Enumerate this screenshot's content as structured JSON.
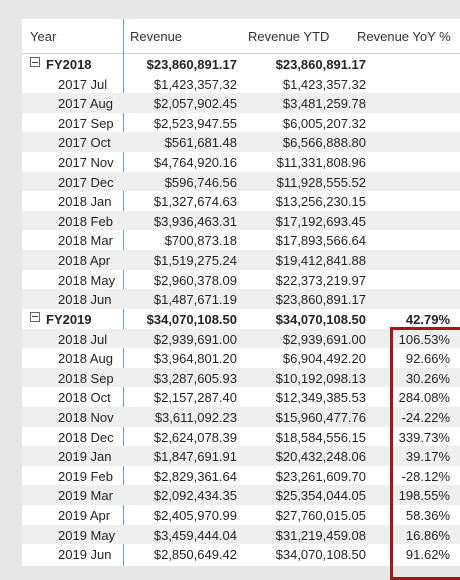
{
  "headers": {
    "year": "Year",
    "revenue": "Revenue",
    "revenue_ytd": "Revenue YTD",
    "revenue_yoy": "Revenue YoY %"
  },
  "rows": [
    {
      "year": "FY2018",
      "revenue": "$23,860,891.17",
      "ytd": "$23,860,891.17",
      "yoy": "",
      "total": true
    },
    {
      "year": "2017 Jul",
      "revenue": "$1,423,357.32",
      "ytd": "$1,423,357.32",
      "yoy": ""
    },
    {
      "year": "2017 Aug",
      "revenue": "$2,057,902.45",
      "ytd": "$3,481,259.78",
      "yoy": ""
    },
    {
      "year": "2017 Sep",
      "revenue": "$2,523,947.55",
      "ytd": "$6,005,207.32",
      "yoy": ""
    },
    {
      "year": "2017 Oct",
      "revenue": "$561,681.48",
      "ytd": "$6,566,888.80",
      "yoy": ""
    },
    {
      "year": "2017 Nov",
      "revenue": "$4,764,920.16",
      "ytd": "$11,331,808.96",
      "yoy": ""
    },
    {
      "year": "2017 Dec",
      "revenue": "$596,746.56",
      "ytd": "$11,928,555.52",
      "yoy": ""
    },
    {
      "year": "2018 Jan",
      "revenue": "$1,327,674.63",
      "ytd": "$13,256,230.15",
      "yoy": ""
    },
    {
      "year": "2018 Feb",
      "revenue": "$3,936,463.31",
      "ytd": "$17,192,693.45",
      "yoy": ""
    },
    {
      "year": "2018 Mar",
      "revenue": "$700,873.18",
      "ytd": "$17,893,566.64",
      "yoy": ""
    },
    {
      "year": "2018 Apr",
      "revenue": "$1,519,275.24",
      "ytd": "$19,412,841.88",
      "yoy": ""
    },
    {
      "year": "2018 May",
      "revenue": "$2,960,378.09",
      "ytd": "$22,373,219.97",
      "yoy": ""
    },
    {
      "year": "2018 Jun",
      "revenue": "$1,487,671.19",
      "ytd": "$23,860,891.17",
      "yoy": ""
    },
    {
      "year": "FY2019",
      "revenue": "$34,070,108.50",
      "ytd": "$34,070,108.50",
      "yoy": "42.79%",
      "total": true
    },
    {
      "year": "2018 Jul",
      "revenue": "$2,939,691.00",
      "ytd": "$2,939,691.00",
      "yoy": "106.53%"
    },
    {
      "year": "2018 Aug",
      "revenue": "$3,964,801.20",
      "ytd": "$6,904,492.20",
      "yoy": "92.66%"
    },
    {
      "year": "2018 Sep",
      "revenue": "$3,287,605.93",
      "ytd": "$10,192,098.13",
      "yoy": "30.26%"
    },
    {
      "year": "2018 Oct",
      "revenue": "$2,157,287.40",
      "ytd": "$12,349,385.53",
      "yoy": "284.08%"
    },
    {
      "year": "2018 Nov",
      "revenue": "$3,611,092.23",
      "ytd": "$15,960,477.76",
      "yoy": "-24.22%"
    },
    {
      "year": "2018 Dec",
      "revenue": "$2,624,078.39",
      "ytd": "$18,584,556.15",
      "yoy": "339.73%"
    },
    {
      "year": "2019 Jan",
      "revenue": "$1,847,691.91",
      "ytd": "$20,432,248.06",
      "yoy": "39.17%"
    },
    {
      "year": "2019 Feb",
      "revenue": "$2,829,361.64",
      "ytd": "$23,261,609.70",
      "yoy": "-28.12%"
    },
    {
      "year": "2019 Mar",
      "revenue": "$2,092,434.35",
      "ytd": "$25,354,044.05",
      "yoy": "198.55%"
    },
    {
      "year": "2019 Apr",
      "revenue": "$2,405,970.99",
      "ytd": "$27,760,015.05",
      "yoy": "58.36%"
    },
    {
      "year": "2019 May",
      "revenue": "$3,459,444.04",
      "ytd": "$31,219,459.08",
      "yoy": "16.86%"
    },
    {
      "year": "2019 Jun",
      "revenue": "$2,850,649.42",
      "ytd": "$34,070,108.50",
      "yoy": "91.62%"
    }
  ],
  "colors": {
    "highlight_border": "#a4161a",
    "column_divider": "#5ba3d6",
    "alt_row": "#efefef"
  }
}
